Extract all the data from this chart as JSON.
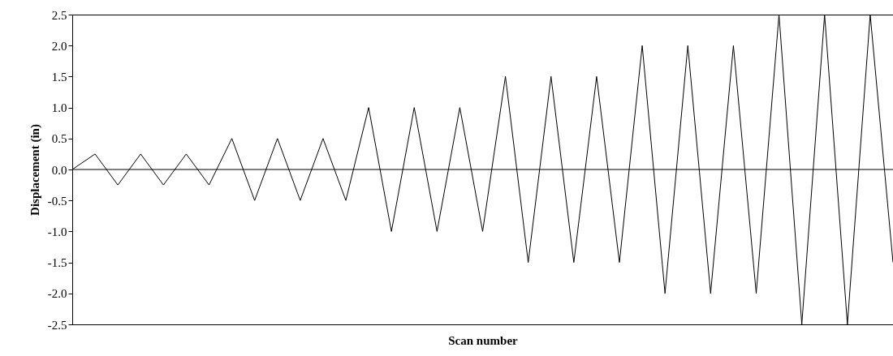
{
  "chart_data": {
    "type": "line",
    "xlabel": "Scan number",
    "ylabel": "Displacement (in)",
    "categories": [
      null,
      null,
      null,
      null,
      null,
      null,
      null,
      null,
      null,
      null,
      null,
      null,
      null,
      null,
      null,
      null,
      null,
      null,
      null,
      null,
      null,
      null,
      null,
      null,
      null,
      null,
      null,
      null,
      null,
      null,
      null,
      null,
      null,
      null,
      null,
      null,
      null
    ],
    "series": [
      {
        "color": "#000000",
        "values": [
          0,
          0.25,
          -0.25,
          0.25,
          -0.25,
          0.25,
          -0.25,
          0.5,
          -0.5,
          0.5,
          -0.5,
          0.5,
          -0.5,
          1.0,
          -1.0,
          1.0,
          -1.0,
          1.0,
          -1.0,
          1.5,
          -1.5,
          1.5,
          -1.5,
          1.5,
          -1.5,
          2.0,
          -2.0,
          2.0,
          -2.0,
          2.0,
          -2.0,
          2.5,
          -2.5,
          2.5,
          -2.5,
          2.5,
          -1.5
        ]
      }
    ],
    "ylim": [
      -2.5,
      2.5
    ],
    "yticks": [
      {
        "value": -2.5,
        "label": "-2.5"
      },
      {
        "value": -2,
        "label": "-2.0"
      },
      {
        "value": -1.5,
        "label": "-1.5"
      },
      {
        "value": -1,
        "label": "-1.0"
      },
      {
        "value": -0.5,
        "label": "-0.5"
      },
      {
        "value": 0,
        "label": "0.0"
      },
      {
        "value": 0.5,
        "label": "0.5"
      },
      {
        "value": 1,
        "label": "1.0"
      },
      {
        "value": 1.5,
        "label": "1.5"
      },
      {
        "value": 2,
        "label": "2.0"
      },
      {
        "value": 2.5,
        "label": "2.5"
      }
    ],
    "ref_lines": [
      {
        "axis": "y",
        "value": 0,
        "color": "#000000"
      }
    ],
    "tick_labels": "y",
    "grid": false,
    "marker": "none",
    "line_style": "solid"
  }
}
